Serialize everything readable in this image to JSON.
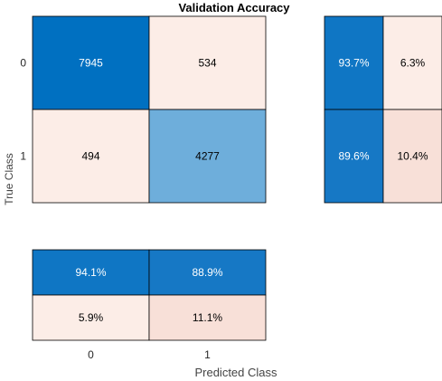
{
  "chart_data": {
    "type": "heatmap",
    "title": "Validation Accuracy",
    "xlabel": "Predicted Class",
    "ylabel": "True Class",
    "class_labels": [
      "0",
      "1"
    ],
    "confusion_matrix": [
      [
        7945,
        534
      ],
      [
        494,
        4277
      ]
    ],
    "row_summary": {
      "values": [
        [
          93.7,
          6.3
        ],
        [
          89.6,
          10.4
        ]
      ],
      "labels": [
        [
          "93.7%",
          "6.3%"
        ],
        [
          "89.6%",
          "10.4%"
        ]
      ]
    },
    "column_summary": {
      "values": [
        [
          94.1,
          88.9
        ],
        [
          5.9,
          11.1
        ]
      ],
      "labels": [
        [
          "94.1%",
          "88.9%"
        ],
        [
          "5.9%",
          "11.1%"
        ]
      ]
    },
    "colors": {
      "main_high": "#0070c1",
      "main_mid": "#6eaedb",
      "main_low": "#fcede7",
      "summary_correct_high": "#0f76c4",
      "summary_correct_mid": "#1678c5",
      "summary_error_low": "#fcede7",
      "summary_error_mid": "#f8e0d8",
      "grid": "#000000"
    }
  }
}
